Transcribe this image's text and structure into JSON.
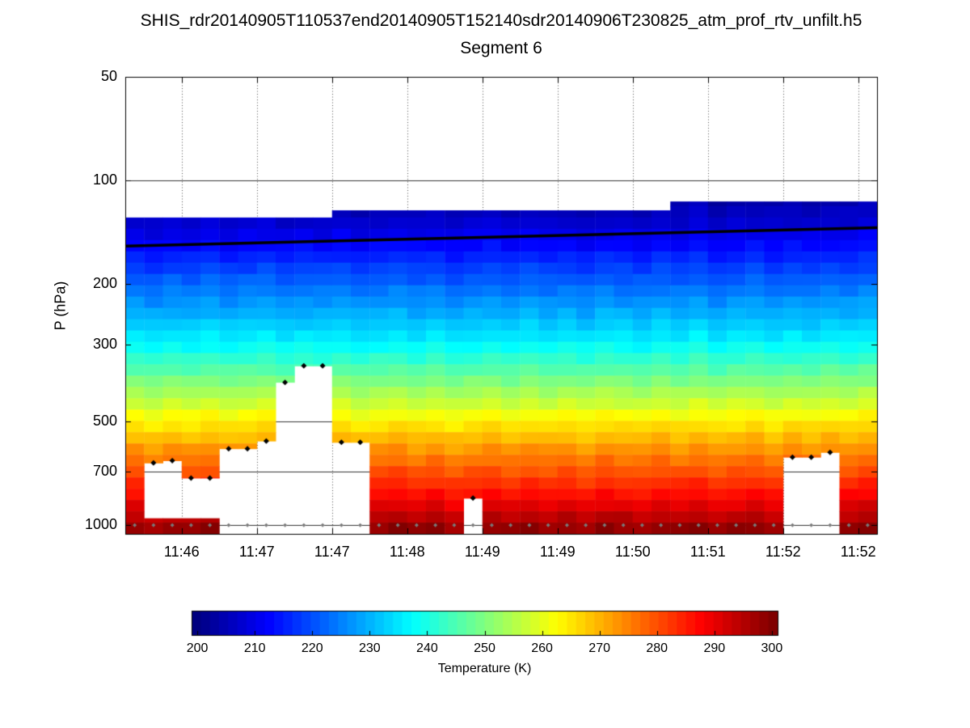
{
  "chart_data": {
    "type": "heatmap",
    "title": "SHIS_rdr20140905T110537end20140905T152140sdr20140906T230825_atm_prof_rtv_unfilt.h5",
    "subtitle": "Segment 6",
    "ylabel": "P (hPa)",
    "yticks": [
      50,
      100,
      200,
      300,
      500,
      700,
      1000
    ],
    "ylim": [
      50,
      1060
    ],
    "grid_pressures": [
      100,
      200,
      300,
      500,
      700,
      1000
    ],
    "x_tick_labels": [
      "11:46",
      "11:47",
      "11:47",
      "11:48",
      "11:49",
      "11:49",
      "11:50",
      "11:51",
      "11:52",
      "11:52"
    ],
    "colorbar": {
      "label": "Temperature (K)",
      "ticks": [
        200,
        210,
        220,
        230,
        240,
        250,
        260,
        270,
        280,
        290,
        300
      ],
      "range": [
        199,
        301
      ]
    },
    "temp_profile": {
      "p": [
        112,
        130,
        150,
        200,
        250,
        300,
        400,
        500,
        600,
        700,
        850,
        1000,
        1060
      ],
      "T": [
        203,
        206,
        211,
        222,
        230,
        237,
        252,
        264,
        273,
        280,
        289,
        298,
        300
      ]
    },
    "flight_line": {
      "p_start": 155,
      "p_end": 137
    },
    "surface_strip": {
      "p_top": 955,
      "p_bottom": 1060
    },
    "col_top": [
      128,
      128,
      128,
      128,
      128,
      128,
      128,
      128,
      128,
      128,
      128,
      122,
      122,
      122,
      122,
      122,
      122,
      122,
      122,
      122,
      122,
      122,
      122,
      122,
      122,
      122,
      122,
      122,
      122,
      115,
      115,
      115,
      115,
      115,
      115,
      115,
      115,
      115,
      115,
      115
    ],
    "col_bot": [
      1060,
      660,
      650,
      730,
      730,
      600,
      600,
      570,
      385,
      345,
      345,
      575,
      575,
      1060,
      1060,
      1060,
      1060,
      1060,
      835,
      1060,
      1060,
      1060,
      1060,
      1060,
      1060,
      1060,
      1060,
      1060,
      1060,
      1060,
      1060,
      1060,
      1060,
      1060,
      1060,
      635,
      635,
      615,
      1060,
      1060
    ],
    "col_strip": [
      true,
      true,
      true,
      true,
      true,
      false,
      false,
      false,
      false,
      false,
      false,
      false,
      false,
      true,
      true,
      true,
      true,
      true,
      false,
      true,
      true,
      true,
      true,
      true,
      true,
      true,
      true,
      true,
      true,
      true,
      true,
      true,
      true,
      true,
      true,
      false,
      false,
      false,
      true,
      true
    ],
    "col_temp_offsets": [
      0.5,
      -0.8,
      0.7,
      -0.3,
      1.0,
      -0.5,
      0.3,
      0.9,
      -0.7,
      0.4,
      -0.2,
      0.8,
      -0.6,
      0.2,
      1.1,
      -0.4,
      0.6,
      -0.9,
      0.3,
      0.7,
      -0.5,
      1.0,
      -0.3,
      0.5,
      -0.8,
      0.9,
      0.1,
      -0.6,
      0.8,
      -0.2,
      1.2,
      -0.7,
      0.4,
      1.0,
      -0.4,
      0.6,
      -0.1,
      0.9,
      0.3,
      1.4
    ],
    "markers": {
      "surface_marker_color": "#7a7a7a",
      "cloud_marker_color": "#000000"
    }
  }
}
